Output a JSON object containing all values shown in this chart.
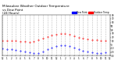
{
  "title": "Milwaukee Weather Outdoor Temperature",
  "title2": "vs Dew Point",
  "title3": "(24 Hours)",
  "title_fontsize": 3.0,
  "background_color": "#ffffff",
  "plot_bg_color": "#ffffff",
  "temp_color": "#ff0000",
  "dew_color": "#0000ff",
  "legend_temp_label": "Outdoor Temp",
  "legend_dew_label": "Dew Point",
  "xlim": [
    0,
    24
  ],
  "ylim": [
    -30,
    80
  ],
  "yticks": [
    -30,
    -20,
    -10,
    0,
    10,
    20,
    30,
    40,
    50,
    60,
    70,
    80
  ],
  "ytick_labels": [
    "-30",
    "-20",
    "-10",
    "0",
    "10",
    "20",
    "30",
    "40",
    "50",
    "60",
    "70",
    "80"
  ],
  "xtick_positions": [
    0,
    1,
    2,
    3,
    4,
    5,
    6,
    7,
    8,
    9,
    10,
    11,
    12,
    13,
    14,
    15,
    16,
    17,
    18,
    19,
    20,
    21,
    22,
    23,
    24
  ],
  "xtick_labels": [
    "12",
    "1",
    "2",
    "3",
    "4",
    "5",
    "6",
    "7",
    "8",
    "9",
    "10",
    "11",
    "12",
    "1",
    "2",
    "3",
    "4",
    "5",
    "6",
    "7",
    "8",
    "9",
    "10",
    "11",
    "12"
  ],
  "grid_color": "#aaaaaa",
  "temp_x": [
    0,
    1,
    2,
    3,
    4,
    5,
    6,
    7,
    8,
    9,
    10,
    11,
    12,
    13,
    14,
    15,
    16,
    17,
    18,
    19,
    20,
    21,
    22,
    23
  ],
  "temp_y": [
    10,
    11,
    11,
    10,
    9,
    8,
    7,
    8,
    12,
    18,
    22,
    26,
    28,
    30,
    29,
    27,
    23,
    20,
    17,
    14,
    13,
    12,
    11,
    10
  ],
  "dew_x": [
    0,
    1,
    2,
    3,
    4,
    5,
    6,
    7,
    8,
    9,
    10,
    11,
    12,
    13,
    14,
    15,
    16,
    17,
    18,
    19,
    20,
    21,
    22,
    23
  ],
  "dew_y": [
    -10,
    -12,
    -13,
    -15,
    -17,
    -18,
    -20,
    -22,
    -22,
    -18,
    -12,
    -8,
    -4,
    -1,
    -2,
    -5,
    -8,
    -12,
    -16,
    -18,
    -20,
    -22,
    -22,
    -20
  ]
}
